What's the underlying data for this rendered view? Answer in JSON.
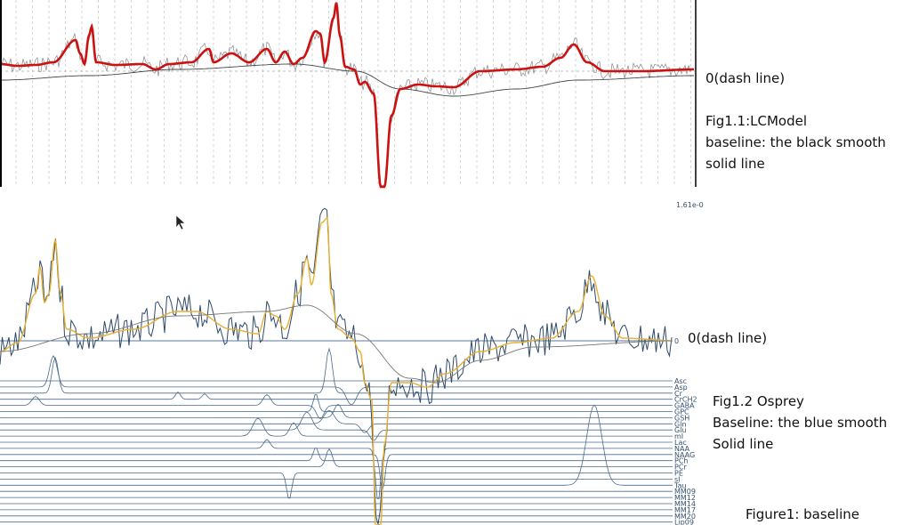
{
  "chart_data": [
    {
      "type": "line",
      "title": "",
      "annotation_zero": "0(dash line)",
      "caption_lines": [
        "Fig1.1:LCModel",
        "baseline: the black smooth",
        "solid line"
      ],
      "colors": {
        "fit": "#cc1111",
        "data": "#888888",
        "baseline": "#444444",
        "zero": "#aaaaaa",
        "grid": "#bbbbbb"
      },
      "series": [
        {
          "role": "fit",
          "points": [
            [
              0,
              8
            ],
            [
              20,
              6
            ],
            [
              40,
              7
            ],
            [
              60,
              10
            ],
            [
              85,
              35
            ],
            [
              90,
              20
            ],
            [
              95,
              8
            ],
            [
              100,
              40
            ],
            [
              103,
              50
            ],
            [
              108,
              10
            ],
            [
              130,
              7
            ],
            [
              160,
              8
            ],
            [
              175,
              2
            ],
            [
              190,
              8
            ],
            [
              215,
              10
            ],
            [
              235,
              25
            ],
            [
              240,
              10
            ],
            [
              260,
              20
            ],
            [
              280,
              10
            ],
            [
              300,
              25
            ],
            [
              310,
              10
            ],
            [
              320,
              22
            ],
            [
              330,
              8
            ],
            [
              340,
              15
            ],
            [
              355,
              45
            ],
            [
              360,
              42
            ],
            [
              365,
              10
            ],
            [
              375,
              60
            ],
            [
              378,
              77
            ],
            [
              382,
              40
            ],
            [
              388,
              5
            ],
            [
              398,
              2
            ],
            [
              405,
              -15
            ],
            [
              410,
              -12
            ],
            [
              420,
              -25
            ],
            [
              428,
              -130
            ],
            [
              432,
              -130
            ],
            [
              440,
              -50
            ],
            [
              450,
              -20
            ],
            [
              470,
              -15
            ],
            [
              490,
              -17
            ],
            [
              510,
              -18
            ],
            [
              540,
              0
            ],
            [
              580,
              2
            ],
            [
              610,
              5
            ],
            [
              630,
              15
            ],
            [
              645,
              30
            ],
            [
              660,
              10
            ],
            [
              680,
              0
            ],
            [
              720,
              0
            ],
            [
              780,
              2
            ]
          ]
        },
        {
          "role": "baseline",
          "points": [
            [
              0,
              -10
            ],
            [
              100,
              -5
            ],
            [
              200,
              2
            ],
            [
              330,
              8
            ],
            [
              400,
              0
            ],
            [
              450,
              -20
            ],
            [
              510,
              -28
            ],
            [
              580,
              -20
            ],
            [
              650,
              -10
            ],
            [
              780,
              -5
            ]
          ]
        }
      ]
    },
    {
      "type": "line",
      "title": "",
      "scale_label": "1.61e-0",
      "zero_tick": "0",
      "annotation_zero": "0(dash line)",
      "caption_lines": [
        "Fig1.2 Osprey",
        "Baseline: the blue smooth",
        "Solid line"
      ],
      "colors": {
        "data": "#2e4a6b",
        "fit": "#e8b030",
        "baseline": "#777777",
        "component": "#4a6a8a"
      },
      "series": [
        {
          "role": "fit",
          "points": [
            [
              0,
              -12
            ],
            [
              20,
              -2
            ],
            [
              40,
              53
            ],
            [
              45,
              83
            ],
            [
              50,
              43
            ],
            [
              55,
              53
            ],
            [
              62,
              113
            ],
            [
              68,
              53
            ],
            [
              75,
              13
            ],
            [
              100,
              3
            ],
            [
              150,
              13
            ],
            [
              200,
              33
            ],
            [
              220,
              33
            ],
            [
              260,
              13
            ],
            [
              290,
              8
            ],
            [
              300,
              33
            ],
            [
              310,
              28
            ],
            [
              320,
              13
            ],
            [
              335,
              53
            ],
            [
              345,
              93
            ],
            [
              350,
              63
            ],
            [
              362,
              133
            ],
            [
              368,
              138
            ],
            [
              372,
              53
            ],
            [
              380,
              13
            ],
            [
              395,
              3
            ],
            [
              405,
              -12
            ],
            [
              410,
              -47
            ],
            [
              418,
              -67
            ],
            [
              422,
              -207
            ],
            [
              428,
              -207
            ],
            [
              432,
              -117
            ],
            [
              440,
              -47
            ],
            [
              460,
              -47
            ],
            [
              480,
              -52
            ],
            [
              500,
              -37
            ],
            [
              540,
              -12
            ],
            [
              580,
              -2
            ],
            [
              620,
              3
            ],
            [
              650,
              33
            ],
            [
              665,
              73
            ],
            [
              680,
              28
            ],
            [
              700,
              3
            ],
            [
              760,
              0
            ]
          ]
        },
        {
          "role": "baseline",
          "points": [
            [
              0,
              -12
            ],
            [
              100,
              8
            ],
            [
              200,
              28
            ],
            [
              300,
              33
            ],
            [
              345,
              40
            ],
            [
              400,
              8
            ],
            [
              460,
              -42
            ],
            [
              490,
              -47
            ],
            [
              540,
              -22
            ],
            [
              600,
              -7
            ],
            [
              760,
              0
            ]
          ]
        }
      ],
      "components": [
        {
          "name": "Asc",
          "peaks": []
        },
        {
          "name": "Asp",
          "peaks": [
            [
              60,
              35,
              6
            ],
            [
              395,
              -20,
              8
            ]
          ]
        },
        {
          "name": "Cr",
          "peaks": [
            [
              62,
              40,
              5
            ],
            [
              370,
              50,
              5
            ]
          ]
        },
        {
          "name": "CrCH2",
          "peaks": [
            [
              200,
              8,
              4
            ],
            [
              230,
              6,
              4
            ]
          ]
        },
        {
          "name": "GABA",
          "peaks": [
            [
              40,
              10,
              6
            ],
            [
              300,
              12,
              6
            ],
            [
              360,
              -15,
              6
            ]
          ]
        },
        {
          "name": "GPC",
          "peaks": [
            [
              355,
              20,
              4
            ]
          ]
        },
        {
          "name": "GSH",
          "peaks": [
            [
              380,
              15,
              6
            ]
          ]
        },
        {
          "name": "Gln",
          "peaks": [
            [
              370,
              15,
              8
            ],
            [
              410,
              -10,
              6
            ]
          ]
        },
        {
          "name": "Glu",
          "peaks": [
            [
              345,
              20,
              8
            ],
            [
              420,
              -12,
              6
            ]
          ]
        },
        {
          "name": "mI",
          "peaks": [
            [
              290,
              20,
              8
            ],
            [
              330,
              15,
              6
            ]
          ]
        },
        {
          "name": "Lac",
          "peaks": []
        },
        {
          "name": "NAA",
          "peaks": [
            [
              425,
              -60,
              4
            ],
            [
              300,
              10,
              5
            ]
          ]
        },
        {
          "name": "NAAG",
          "peaks": [
            [
              430,
              -40,
              4
            ]
          ]
        },
        {
          "name": "PCh",
          "peaks": [
            [
              355,
              15,
              4
            ]
          ]
        },
        {
          "name": "PCr",
          "peaks": [
            [
              370,
              20,
              5
            ]
          ]
        },
        {
          "name": "PE",
          "peaks": [
            [
              325,
              -30,
              4
            ]
          ]
        },
        {
          "name": "sI",
          "peaks": []
        },
        {
          "name": "Tau",
          "peaks": [
            [
              668,
              90,
              12
            ]
          ]
        },
        {
          "name": "MM09",
          "peaks": []
        },
        {
          "name": "MM12",
          "peaks": []
        },
        {
          "name": "MM14",
          "peaks": []
        },
        {
          "name": "MM17",
          "peaks": []
        },
        {
          "name": "MM20",
          "peaks": []
        },
        {
          "name": "Lip09",
          "peaks": []
        }
      ]
    }
  ],
  "figure_caption": "Figure1: baseline"
}
